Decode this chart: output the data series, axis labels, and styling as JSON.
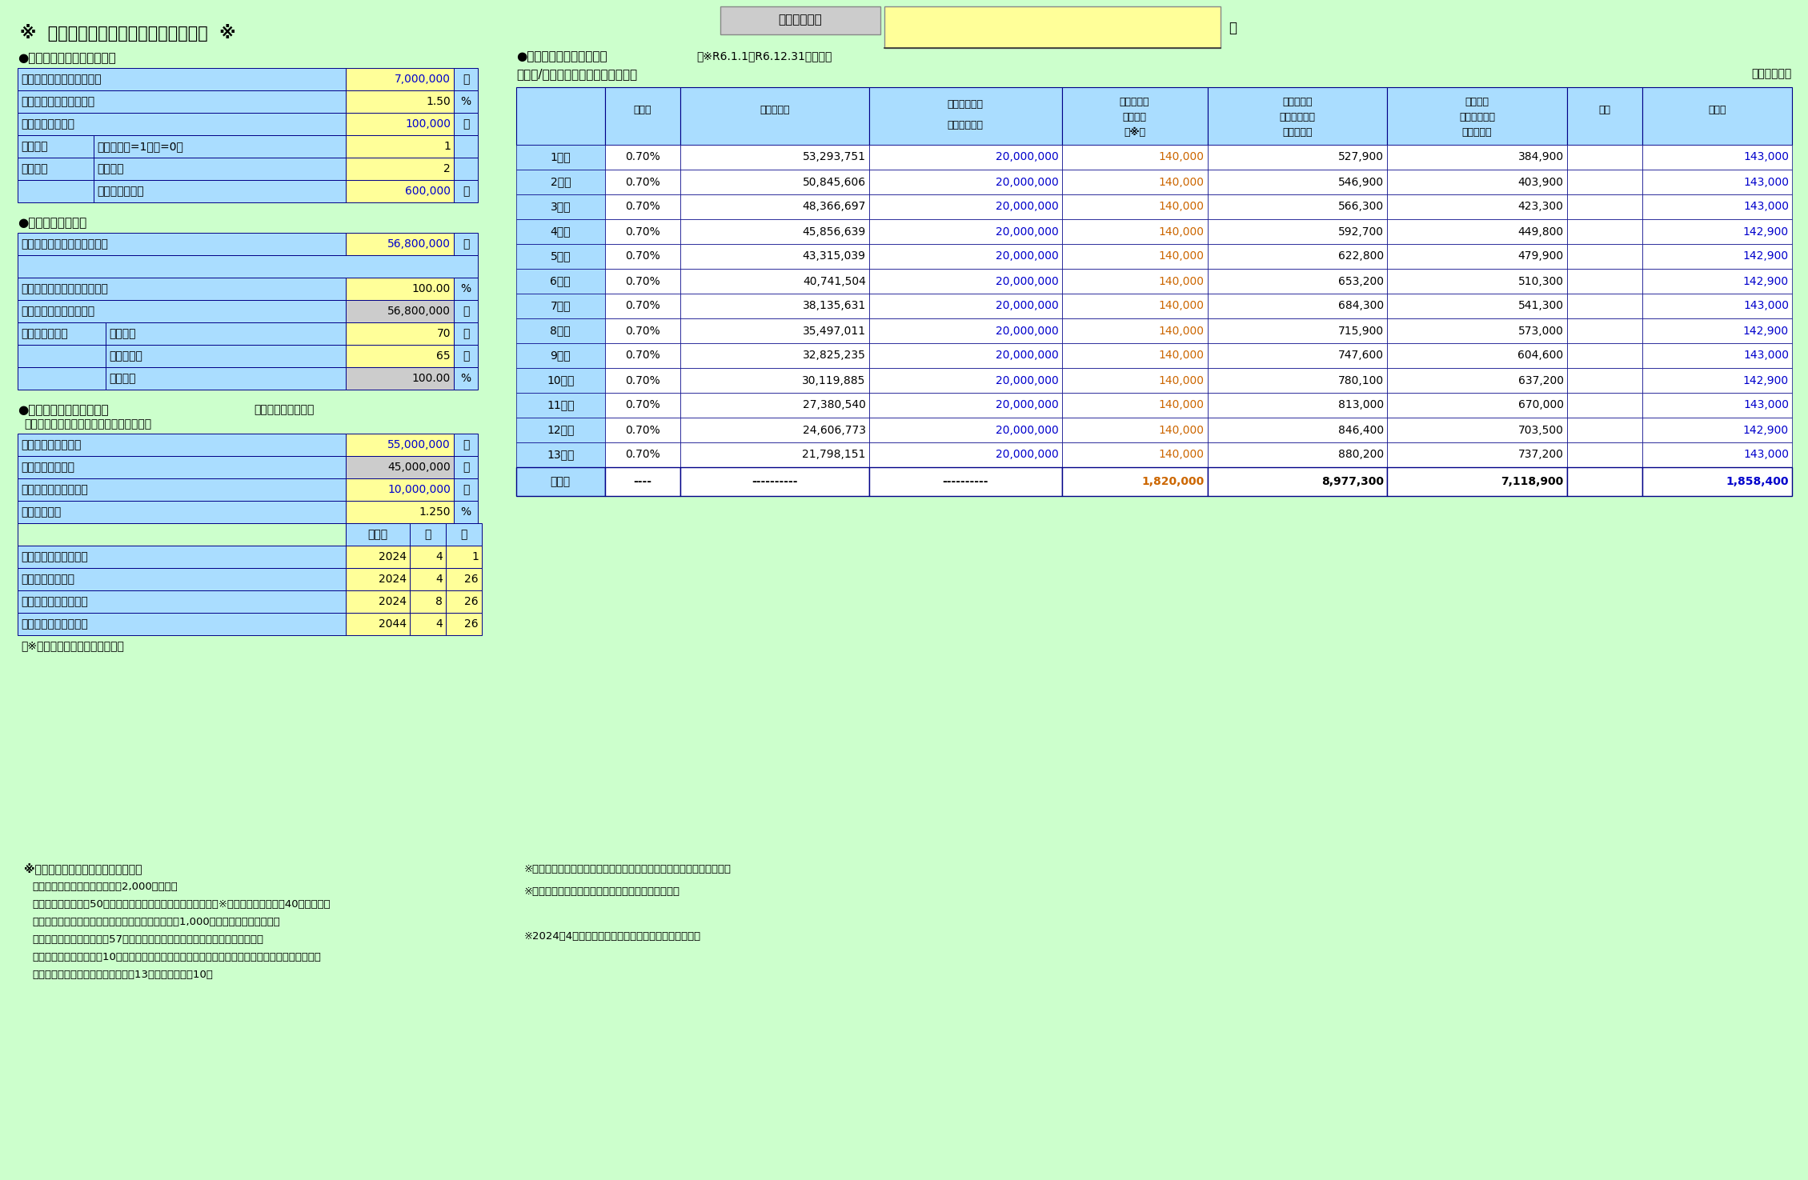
{
  "bg_color": "#ccffcc",
  "title": "※  住宅ローン減税額シミュレーション  ※",
  "section1_title": "●収入（所得）に関する入力",
  "section2_title": "●住宅に関する入力",
  "section3_title": "●借入金計算に関する入力",
  "section3_sub": "《住宅ローン方式》",
  "section3_sub2": "＜元利均等・ボーナス返済・最終回調整＞",
  "section4_title": "●住宅ローン減税額試算表",
  "section4_sub": "（※R6.1.1～R6.12.31入居分）",
  "section4_sub2": "＜新築/買取再販：一般住宅の場合＞",
  "section4_unit": "（単位：円）",
  "housing_type_label": "住宅の種類等",
  "sama_label": "様",
  "rows1": [
    {
      "label": "給与収入：給与の年間総額",
      "value": "7,000,000",
      "unit": "円",
      "val_bg": "#ffff99",
      "val_color": "#0000cc"
    },
    {
      "label": "給与の上昇率（％／年）",
      "value": "1.50",
      "unit": "%",
      "val_bg": "#ffff99",
      "val_color": "#000000"
    },
    {
      "label": "その他の所得金額",
      "value": "100,000",
      "unit": "円",
      "val_bg": "#ffff99",
      "val_color": "#0000cc"
    }
  ],
  "split_rows1": [
    {
      "label1": "所得控除",
      "label2": "配偶者（有=1，無=0）",
      "value": "1",
      "unit": "",
      "val_bg": "#ffff99",
      "val_color": "#000000"
    },
    {
      "label1": "のデータ",
      "label2": "扶養人数",
      "value": "2",
      "unit": "",
      "val_bg": "#ffff99",
      "val_color": "#000000"
    },
    {
      "label1": "",
      "label2": "その他の控除額",
      "value": "600,000",
      "unit": "円",
      "val_bg": "#ffff99",
      "val_color": "#0000cc"
    }
  ],
  "rows2_simple": [
    {
      "label": "取得対価の額（家屋＋敷地）",
      "value": "56,800,000",
      "unit": "円",
      "val_bg": "#ffff99",
      "val_color": "#0000cc"
    }
  ],
  "rows2_gap_label": "",
  "rows2_rest": [
    {
      "label": "共有の場合：持分割合（％）",
      "value": "100.00",
      "unit": "%",
      "val_bg": "#ffff99",
      "val_color": "#000000"
    },
    {
      "label": "持分に係る取得対価の額",
      "value": "56,800,000",
      "unit": "円",
      "val_bg": "#cccccc",
      "val_color": "#000000"
    }
  ],
  "split_rows2": [
    {
      "label1": "居住部分の割合",
      "label2": "総床面積",
      "value": "70",
      "unit": "㎡",
      "val_bg": "#ffff99",
      "val_color": "#000000"
    },
    {
      "label1": "",
      "label2": "居住用面積",
      "value": "65",
      "unit": "㎡",
      "val_bg": "#ffff99",
      "val_color": "#000000"
    },
    {
      "label1": "",
      "label2": "居住割合",
      "value": "100.00",
      "unit": "%",
      "val_bg": "#cccccc",
      "val_color": "#000000"
    }
  ],
  "loan_rows": [
    {
      "label": "借入金額：金額入力",
      "value": "55,000,000",
      "unit": "円",
      "val_bg": "#ffff99",
      "val_color": "#0000cc"
    },
    {
      "label": "月々返済元本金額",
      "value": "45,000,000",
      "unit": "円",
      "val_bg": "#cccccc",
      "val_color": "#000000"
    },
    {
      "label": "ボーナス返済元本金額",
      "value": "10,000,000",
      "unit": "円",
      "val_bg": "#ffff99",
      "val_color": "#0000cc"
    },
    {
      "label": "年利率（％）",
      "value": "1.250",
      "unit": "%",
      "val_bg": "#ffff99",
      "val_color": "#000000"
    }
  ],
  "loan_dates": [
    {
      "label": "借入日（計算基準日）",
      "year": "2024",
      "month": "4",
      "day": "1"
    },
    {
      "label": "第一回返済予定日",
      "year": "2024",
      "month": "4",
      "day": "26"
    },
    {
      "label": "第一回ボーナス返済日",
      "year": "2024",
      "month": "8",
      "day": "26"
    },
    {
      "label": "借入金の最終返済期日",
      "year": "2044",
      "month": "4",
      "day": "26"
    }
  ],
  "table_data": [
    [
      "1年目",
      "0.70%",
      "53,293,751",
      "20,000,000",
      "140,000",
      "527,900",
      "384,900",
      "",
      "143,000"
    ],
    [
      "2年目",
      "0.70%",
      "50,845,606",
      "20,000,000",
      "140,000",
      "546,900",
      "403,900",
      "",
      "143,000"
    ],
    [
      "3年目",
      "0.70%",
      "48,366,697",
      "20,000,000",
      "140,000",
      "566,300",
      "423,300",
      "",
      "143,000"
    ],
    [
      "4年目",
      "0.70%",
      "45,856,639",
      "20,000,000",
      "140,000",
      "592,700",
      "449,800",
      "",
      "142,900"
    ],
    [
      "5年目",
      "0.70%",
      "43,315,039",
      "20,000,000",
      "140,000",
      "622,800",
      "479,900",
      "",
      "142,900"
    ],
    [
      "6年目",
      "0.70%",
      "40,741,504",
      "20,000,000",
      "140,000",
      "653,200",
      "510,300",
      "",
      "142,900"
    ],
    [
      "7年目",
      "0.70%",
      "38,135,631",
      "20,000,000",
      "140,000",
      "684,300",
      "541,300",
      "",
      "143,000"
    ],
    [
      "8年目",
      "0.70%",
      "35,497,011",
      "20,000,000",
      "140,000",
      "715,900",
      "573,000",
      "",
      "142,900"
    ],
    [
      "9年目",
      "0.70%",
      "32,825,235",
      "20,000,000",
      "140,000",
      "747,600",
      "604,600",
      "",
      "143,000"
    ],
    [
      "10年目",
      "0.70%",
      "30,119,885",
      "20,000,000",
      "140,000",
      "780,100",
      "637,200",
      "",
      "142,900"
    ],
    [
      "11年目",
      "0.70%",
      "27,380,540",
      "20,000,000",
      "140,000",
      "813,000",
      "670,000",
      "",
      "143,000"
    ],
    [
      "12年目",
      "0.70%",
      "24,606,773",
      "20,000,000",
      "140,000",
      "846,400",
      "703,500",
      "",
      "142,900"
    ],
    [
      "13年目",
      "0.70%",
      "21,798,151",
      "20,000,000",
      "140,000",
      "880,200",
      "737,200",
      "",
      "143,000"
    ]
  ],
  "table_total": [
    "合　計",
    "----",
    "----------",
    "----------",
    "1,820,000",
    "8,977,300",
    "7,118,900",
    "",
    "1,858,400"
  ],
  "notes_bottom": [
    "※住宅ローン控除の適用要件（概略）",
    "１．適用年分の合計所得金額が2,000万円以下",
    "２．家屋の総床面積50㎡以上（内２分の１以上が居住用）　（※新築の場合、床面積40㎡以上から",
    "　　適用可。ただし控除期間のうち合計所得金額が1,000万円の年は適用しない）",
    "３．既存住宅の場合、昭和57年以降に建築されたもの（新耐震基準適合住宅）",
    "４．借入金の償還期間が10年以上　　５．前々年以後居住用財産の特例の適用をうけていないこと",
    "（控除期間）新築・買取再販住宅：13年、既存住宅：10年"
  ],
  "notes_right": [
    "※所得税額等の試算は復興特別所得税、森林環境税を含めた金額です。",
    "※令和６年分所得税の定額減税は考慮していません。",
    "",
    "※2024年4月時点での税制に基づいて試算しています。"
  ]
}
